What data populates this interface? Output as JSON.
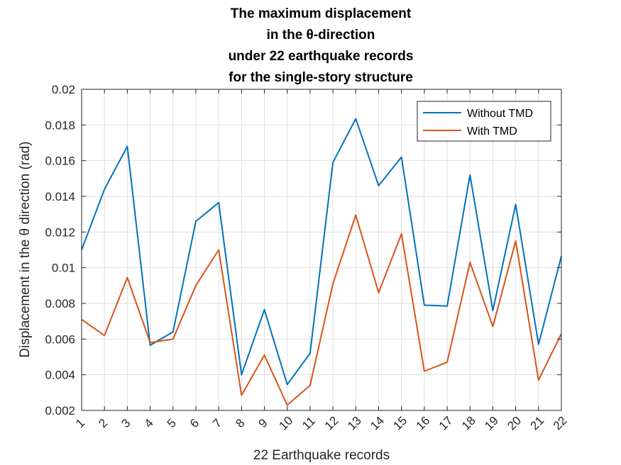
{
  "chart_data": {
    "type": "line",
    "title": [
      "The maximum displacement",
      "in the θ-direction",
      "under 22 earthquake records",
      "for the single-story structure"
    ],
    "xlabel": "22 Earthquake records",
    "ylabel": "Displacement in the θ direction (rad)",
    "x": [
      1,
      2,
      3,
      4,
      5,
      6,
      7,
      8,
      9,
      10,
      11,
      12,
      13,
      14,
      15,
      16,
      17,
      18,
      19,
      20,
      21,
      22
    ],
    "xlim": [
      1,
      22
    ],
    "ylim": [
      0.002,
      0.02
    ],
    "yticks": [
      0.002,
      0.004,
      0.006,
      0.008,
      0.01,
      0.012,
      0.014,
      0.016,
      0.018,
      0.02
    ],
    "ytick_labels": [
      "0.002",
      "0.004",
      "0.006",
      "0.008",
      "0.01",
      "0.012",
      "0.014",
      "0.016",
      "0.018",
      "0.02"
    ],
    "grid": true,
    "legend_position": "top-right",
    "series": [
      {
        "name": "Without TMD",
        "color": "#0072BD",
        "values": [
          0.011,
          0.0144,
          0.0168,
          0.00565,
          0.0064,
          0.0126,
          0.01365,
          0.004,
          0.00765,
          0.00345,
          0.0052,
          0.0159,
          0.01835,
          0.0146,
          0.0162,
          0.0079,
          0.00785,
          0.0152,
          0.0076,
          0.01355,
          0.0057,
          0.01065
        ]
      },
      {
        "name": "With TMD",
        "color": "#D95319",
        "values": [
          0.0071,
          0.0062,
          0.00945,
          0.0058,
          0.006,
          0.009,
          0.011,
          0.00285,
          0.0051,
          0.0023,
          0.0034,
          0.0091,
          0.01295,
          0.0086,
          0.0119,
          0.0042,
          0.0047,
          0.0103,
          0.0067,
          0.0115,
          0.0037,
          0.0063
        ]
      }
    ]
  }
}
